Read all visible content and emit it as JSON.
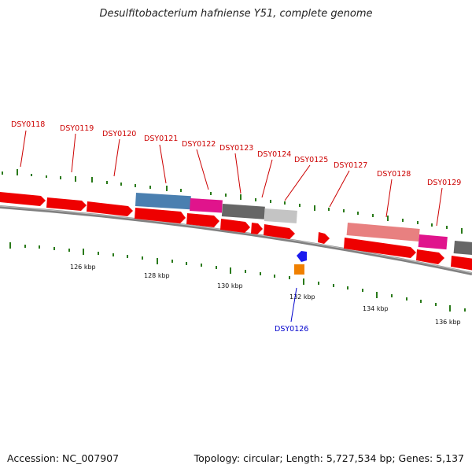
{
  "title": "Desulfitobacterium hafniense Y51, complete genome",
  "footer": {
    "accession": "Accession: NC_007907",
    "summary": "Topology: circular; Length: 5,727,534 bp; Genes: 5,137"
  },
  "colors": {
    "gene_red": "#ee0000",
    "backbone": "#808080",
    "feature_blue": "#4a7fb0",
    "feature_magenta": "#e0148c",
    "feature_dark_gray": "#666666",
    "feature_light_gray": "#c0c0c0",
    "feature_salmon": "#e88080",
    "tick_green": "#2a7a1a",
    "label_red": "#cc0000",
    "label_blue": "#0000cc",
    "small_blue": "#1a1aee",
    "small_orange": "#f08000"
  },
  "scale": {
    "unit": "kbp",
    "labels": [
      "126 kbp",
      "128 kbp",
      "130 kbp",
      "132 kbp",
      "134 kbp",
      "136 kbp"
    ]
  },
  "gene_labels": [
    {
      "name": "DSY0118",
      "strand": "top"
    },
    {
      "name": "DSY0119",
      "strand": "top"
    },
    {
      "name": "DSY0120",
      "strand": "top"
    },
    {
      "name": "DSY0121",
      "strand": "top"
    },
    {
      "name": "DSY0122",
      "strand": "top"
    },
    {
      "name": "DSY0123",
      "strand": "top"
    },
    {
      "name": "DSY0124",
      "strand": "top"
    },
    {
      "name": "DSY0125",
      "strand": "top"
    },
    {
      "name": "DSY0127",
      "strand": "top"
    },
    {
      "name": "DSY0128",
      "strand": "top"
    },
    {
      "name": "DSY0129",
      "strand": "top"
    },
    {
      "name": "DSY0126",
      "strand": "bottom"
    }
  ]
}
